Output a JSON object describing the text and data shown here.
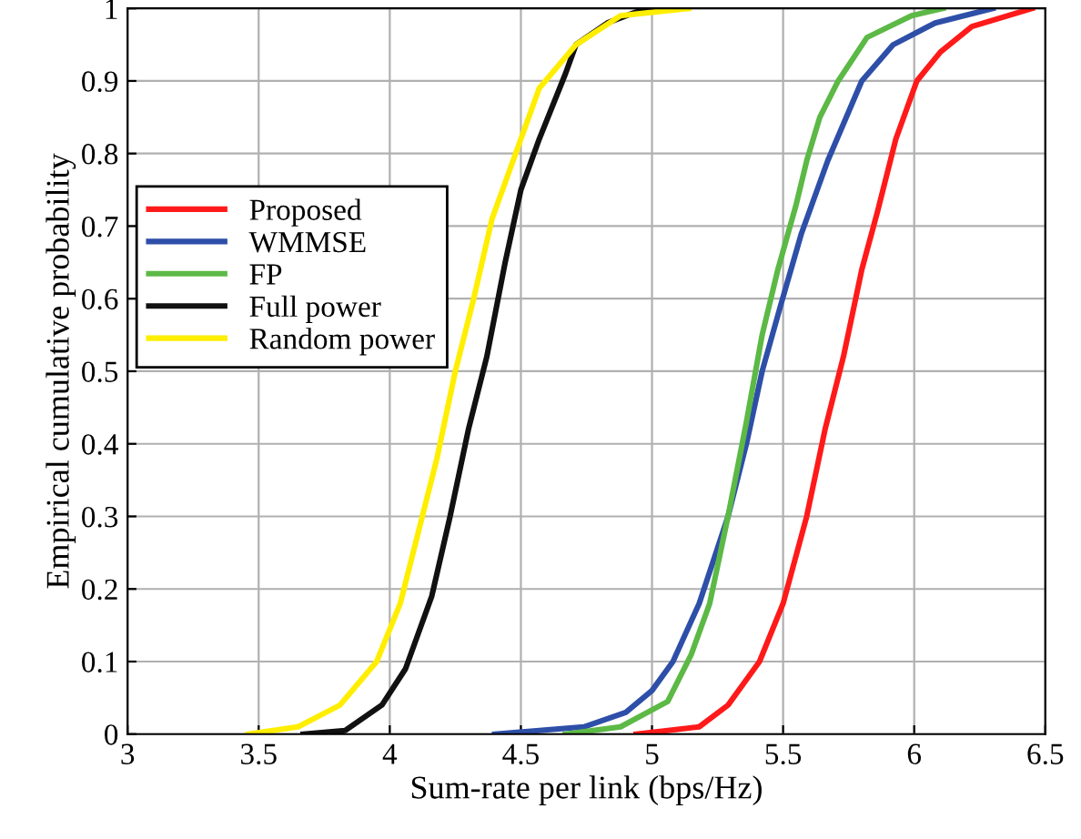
{
  "chart_data": {
    "type": "line",
    "xlabel": "Sum-rate per link (bps/Hz)",
    "ylabel": "Empirical cumulative probability",
    "xlim": [
      3,
      6.5
    ],
    "ylim": [
      0,
      1
    ],
    "xticks": [
      3,
      3.5,
      4,
      4.5,
      5,
      5.5,
      6,
      6.5
    ],
    "yticks": [
      0,
      0.1,
      0.2,
      0.3,
      0.4,
      0.5,
      0.6,
      0.7,
      0.8,
      0.9,
      1
    ],
    "grid": true,
    "legend": "left",
    "line_style": "solid",
    "marker": "none",
    "series": [
      {
        "name": "Proposed",
        "color": "#ff1a1a",
        "x": [
          4.94,
          5.18,
          5.29,
          5.41,
          5.5,
          5.59,
          5.66,
          5.73,
          5.8,
          5.86,
          5.93,
          6.01,
          6.1,
          6.22,
          6.45
        ],
        "values": [
          0,
          0.01,
          0.04,
          0.1,
          0.18,
          0.3,
          0.42,
          0.52,
          0.64,
          0.72,
          0.82,
          0.9,
          0.94,
          0.975,
          1
        ]
      },
      {
        "name": "WMMSE",
        "color": "#2e4fa8",
        "x": [
          4.4,
          4.74,
          4.9,
          5.0,
          5.08,
          5.18,
          5.29,
          5.36,
          5.42,
          5.49,
          5.57,
          5.67,
          5.8,
          5.92,
          6.08,
          6.3
        ],
        "values": [
          0,
          0.01,
          0.03,
          0.06,
          0.1,
          0.18,
          0.3,
          0.4,
          0.5,
          0.59,
          0.69,
          0.79,
          0.9,
          0.95,
          0.98,
          1
        ]
      },
      {
        "name": "FP",
        "color": "#5cb946",
        "x": [
          4.67,
          4.88,
          5.06,
          5.15,
          5.22,
          5.29,
          5.36,
          5.42,
          5.48,
          5.55,
          5.59,
          5.64,
          5.71,
          5.82,
          5.99,
          6.11
        ],
        "values": [
          0,
          0.01,
          0.045,
          0.11,
          0.18,
          0.3,
          0.43,
          0.55,
          0.64,
          0.73,
          0.79,
          0.85,
          0.9,
          0.96,
          0.99,
          1
        ]
      },
      {
        "name": "Full power",
        "color": "#111111",
        "x": [
          3.67,
          3.83,
          3.97,
          4.06,
          4.16,
          4.23,
          4.3,
          4.37,
          4.44,
          4.5,
          4.57,
          4.67,
          4.71,
          4.83,
          4.94,
          5.0
        ],
        "values": [
          0,
          0.005,
          0.04,
          0.09,
          0.19,
          0.3,
          0.42,
          0.52,
          0.65,
          0.75,
          0.82,
          0.91,
          0.95,
          0.98,
          0.995,
          1
        ]
      },
      {
        "name": "Random power",
        "color": "#ffee00",
        "x": [
          3.46,
          3.65,
          3.81,
          3.95,
          4.04,
          4.11,
          4.18,
          4.25,
          4.32,
          4.39,
          4.48,
          4.57,
          4.71,
          4.88,
          5.14
        ],
        "values": [
          0,
          0.01,
          0.04,
          0.1,
          0.18,
          0.28,
          0.38,
          0.5,
          0.6,
          0.71,
          0.8,
          0.89,
          0.95,
          0.99,
          1
        ]
      }
    ]
  }
}
